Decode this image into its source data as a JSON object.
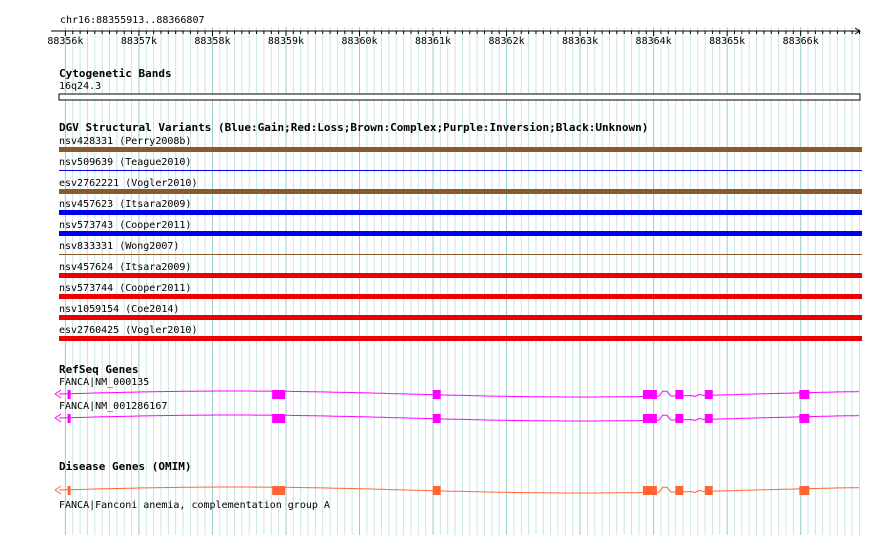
{
  "ruler": {
    "region": "chr16:88355913..88366807",
    "start": 88355913,
    "end": 88366807,
    "ticks": [
      {
        "pos": 88356000,
        "label": "88356k"
      },
      {
        "pos": 88357000,
        "label": "88357k"
      },
      {
        "pos": 88358000,
        "label": "88358k"
      },
      {
        "pos": 88359000,
        "label": "88359k"
      },
      {
        "pos": 88360000,
        "label": "88360k"
      },
      {
        "pos": 88361000,
        "label": "88361k"
      },
      {
        "pos": 88362000,
        "label": "88362k"
      },
      {
        "pos": 88363000,
        "label": "88363k"
      },
      {
        "pos": 88364000,
        "label": "88364k"
      },
      {
        "pos": 88365000,
        "label": "88365k"
      },
      {
        "pos": 88366000,
        "label": "88366k"
      }
    ]
  },
  "cytoband": {
    "title": "Cytogenetic Bands",
    "band": "16q24.3"
  },
  "dgv": {
    "title": "DGV Structural Variants (Blue:Gain;Red:Loss;Brown:Complex;Purple:Inversion;Black:Unknown)",
    "colors": {
      "gain": "#0000ee",
      "loss": "#ee0000",
      "complex": "#8b5a2b"
    },
    "variants": [
      {
        "label": "nsv428331 (Perry2008b)",
        "type": "complex",
        "weight": "thick"
      },
      {
        "label": "nsv509639 (Teague2010)",
        "type": "gain",
        "weight": "thin"
      },
      {
        "label": "esv2762221 (Vogler2010)",
        "type": "complex",
        "weight": "thick"
      },
      {
        "label": "nsv457623 (Itsara2009)",
        "type": "gain",
        "weight": "thick"
      },
      {
        "label": "nsv573743 (Cooper2011)",
        "type": "gain",
        "weight": "thick"
      },
      {
        "label": "nsv833331 (Wong2007)",
        "type": "complex",
        "weight": "thin"
      },
      {
        "label": "nsv457624 (Itsara2009)",
        "type": "loss",
        "weight": "thick"
      },
      {
        "label": "nsv573744 (Cooper2011)",
        "type": "loss",
        "weight": "thick"
      },
      {
        "label": "nsv1059154 (Coe2014)",
        "type": "loss",
        "weight": "thick"
      },
      {
        "label": "esv2760425 (Vogler2010)",
        "type": "loss",
        "weight": "thick"
      }
    ]
  },
  "refseq": {
    "title": "RefSeq Genes",
    "color": "#ff00ff",
    "genes": [
      {
        "label": "FANCA|NM_000135",
        "first_exon": "small"
      },
      {
        "label": "FANCA|NM_001286167",
        "first_exon": "small"
      }
    ],
    "exons": [
      88356050,
      88358900,
      88361050,
      88363950,
      88364350,
      88364750,
      88366050
    ]
  },
  "omim": {
    "title": "Disease Genes (OMIM)",
    "color": "#ff6633",
    "label": "FANCA|Fanconi anemia, complementation group A",
    "exons": [
      88356050,
      88358900,
      88361050,
      88363950,
      88364350,
      88364750,
      88366050
    ]
  },
  "colors": {
    "grid_major": "#99cccc",
    "grid_minor": "#c8e6e6",
    "text": "#000000"
  }
}
